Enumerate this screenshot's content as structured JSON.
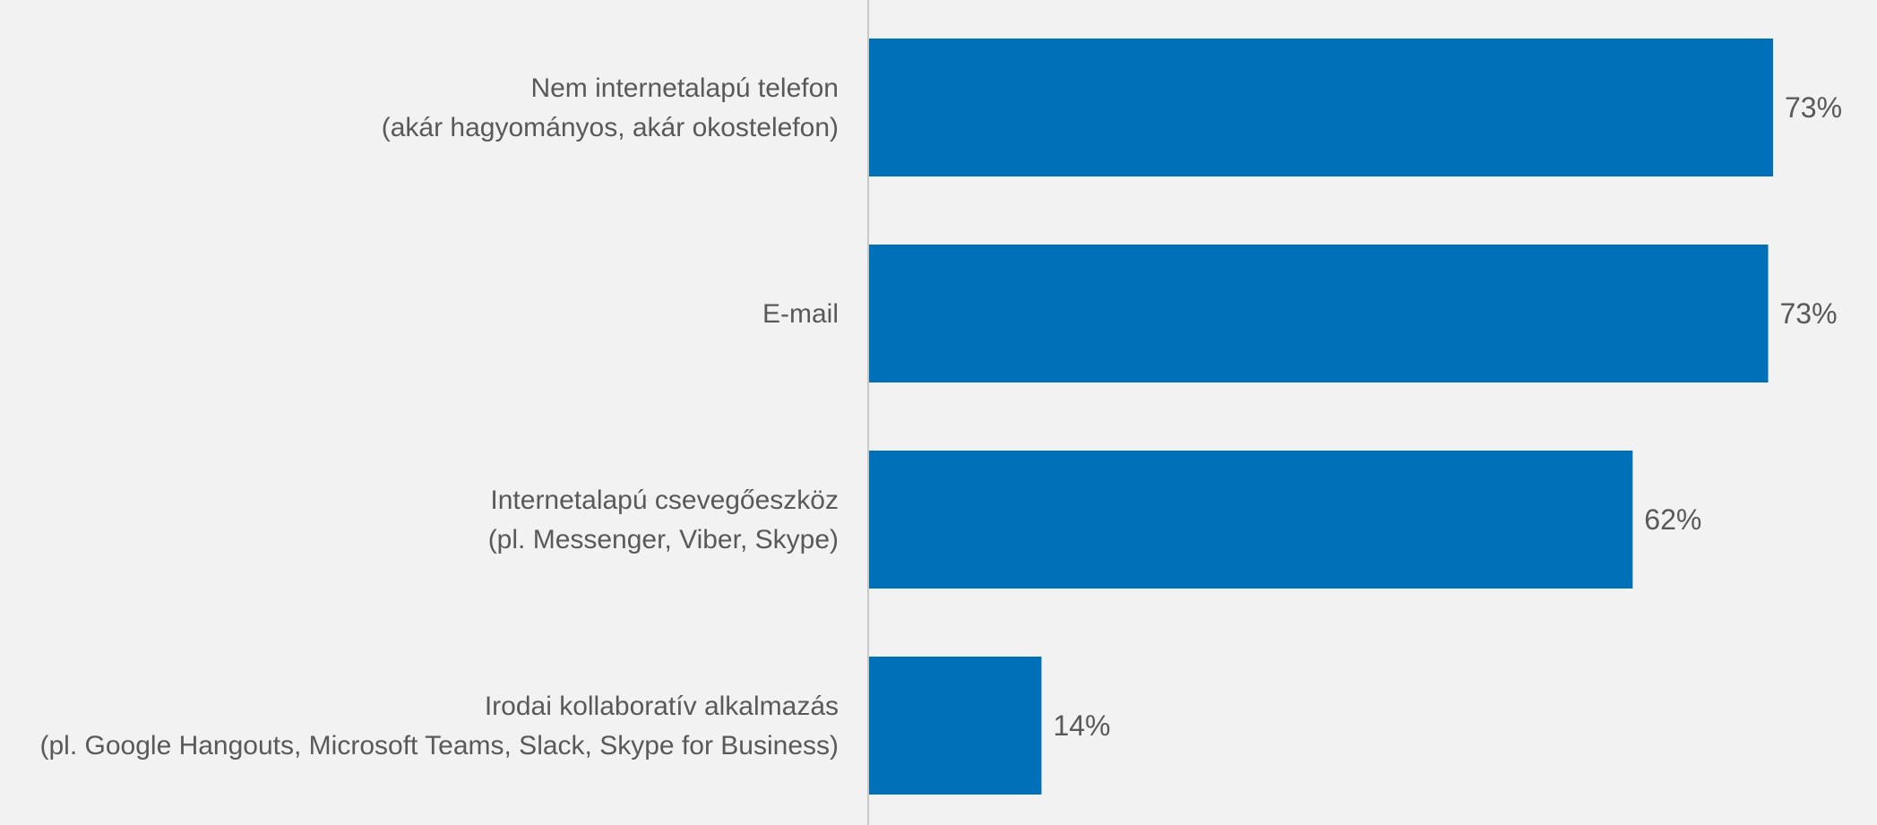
{
  "chart_data": {
    "type": "bar",
    "orientation": "horizontal",
    "categories": [
      [
        "Nem internetalapú telefon",
        "(akár hagyományos, akár okostelefon)"
      ],
      [
        "E-mail"
      ],
      [
        "Internetalapú csevegőeszköz",
        "(pl. Messenger, Viber, Skype)"
      ],
      [
        "Irodai kollaboratív alkalmazás",
        "(pl. Google Hangouts, Microsoft Teams, Slack, Skype for Business)"
      ]
    ],
    "values": [
      73.4,
      73.0,
      62.0,
      14.0
    ],
    "data_labels": [
      "73%",
      "73%",
      "62%",
      "14%"
    ],
    "xlim": [
      0,
      75
    ],
    "grid": false,
    "legend": "none",
    "bar_color": "#0070b8",
    "axis_color": "#c8c8c8"
  }
}
